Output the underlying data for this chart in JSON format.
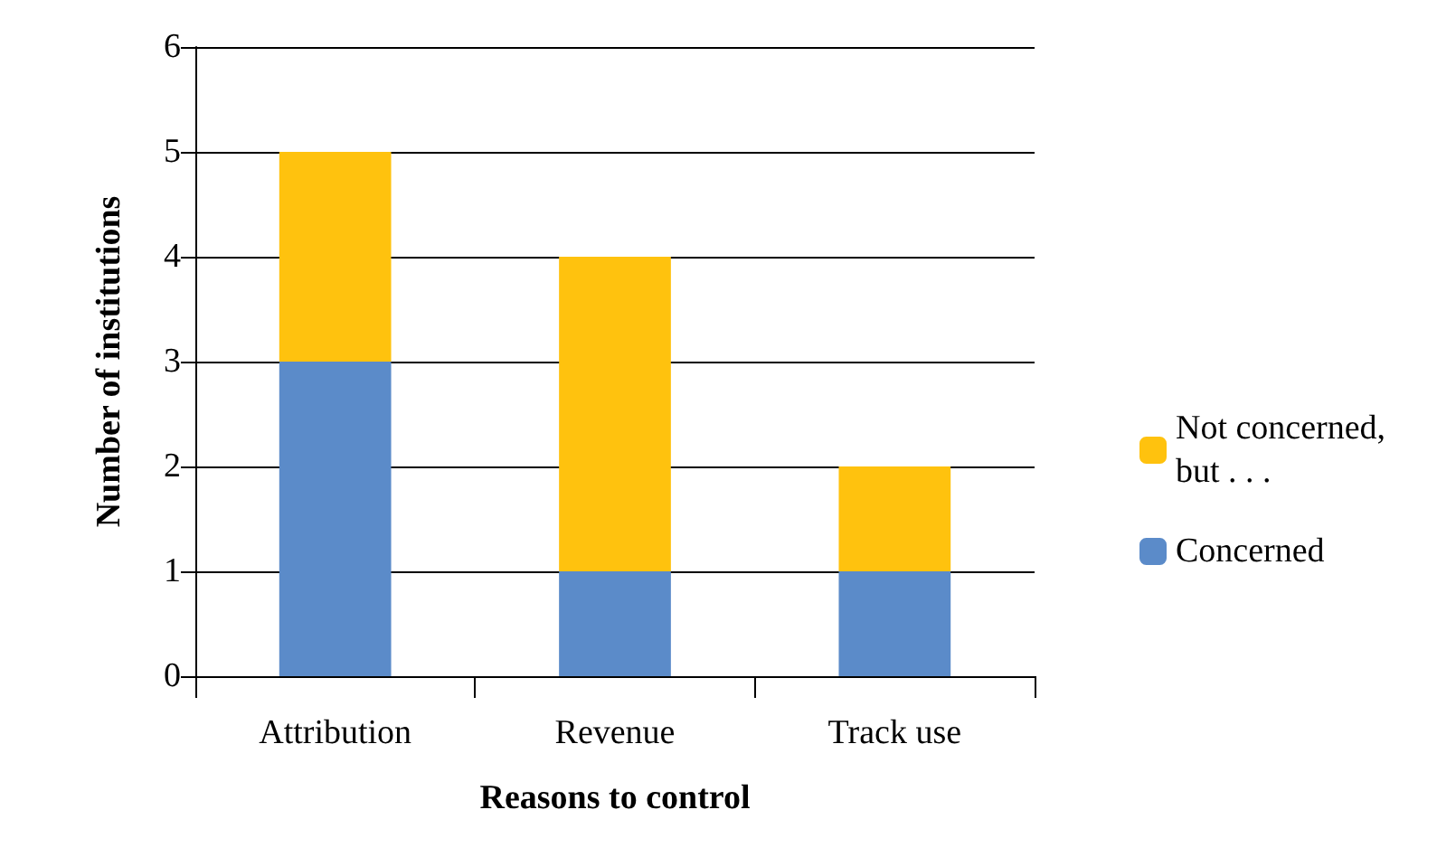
{
  "chart_data": {
    "type": "bar",
    "stacked": true,
    "xlabel": "Reasons to control",
    "ylabel": "Number of institutions",
    "categories": [
      "Attribution",
      "Revenue",
      "Track use"
    ],
    "series": [
      {
        "name": "Concerned",
        "color": "#5b8bc9",
        "values": [
          3,
          1,
          1
        ]
      },
      {
        "name": "Not concerned, but . . .",
        "color": "#ffc20e",
        "values": [
          2,
          3,
          1
        ]
      }
    ],
    "ylim": [
      0,
      6
    ],
    "yticks": [
      0,
      1,
      2,
      3,
      4,
      5,
      6
    ],
    "grid": "y",
    "legend": "right"
  }
}
